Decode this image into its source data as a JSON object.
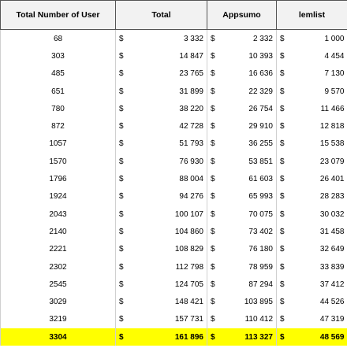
{
  "table": {
    "currency": "$",
    "header": [
      "Total Number of User",
      "Total",
      "Appsumo",
      "lemlist"
    ],
    "rows": [
      [
        "68",
        "3 332",
        "2 332",
        "1 000"
      ],
      [
        "303",
        "14 847",
        "10 393",
        "4 454"
      ],
      [
        "485",
        "23 765",
        "16 636",
        "7 130"
      ],
      [
        "651",
        "31 899",
        "22 329",
        "9 570"
      ],
      [
        "780",
        "38 220",
        "26 754",
        "11 466"
      ],
      [
        "872",
        "42 728",
        "29 910",
        "12 818"
      ],
      [
        "1057",
        "51 793",
        "36 255",
        "15 538"
      ],
      [
        "1570",
        "76 930",
        "53 851",
        "23 079"
      ],
      [
        "1796",
        "88 004",
        "61 603",
        "26 401"
      ],
      [
        "1924",
        "94 276",
        "65 993",
        "28 283"
      ],
      [
        "2043",
        "100 107",
        "70 075",
        "30 032"
      ],
      [
        "2140",
        "104 860",
        "73 402",
        "31 458"
      ],
      [
        "2221",
        "108 829",
        "76 180",
        "32 649"
      ],
      [
        "2302",
        "112 798",
        "78 959",
        "33 839"
      ],
      [
        "2545",
        "124 705",
        "87 294",
        "37 412"
      ],
      [
        "3029",
        "148 421",
        "103 895",
        "44 526"
      ],
      [
        "3219",
        "157 731",
        "110 412",
        "47 319"
      ]
    ],
    "total": [
      "3304",
      "161 896",
      "113 327",
      "48 569"
    ]
  }
}
